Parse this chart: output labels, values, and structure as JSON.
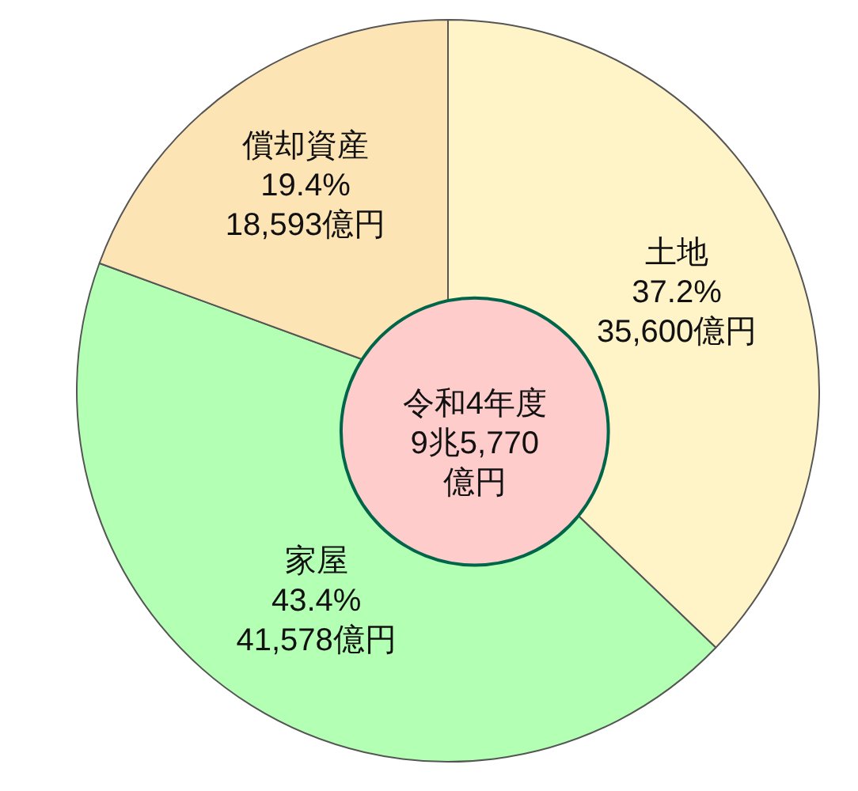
{
  "chart_data": {
    "type": "donut",
    "categories": [
      "土地",
      "家屋",
      "償却資産"
    ],
    "values": [
      35600,
      41578,
      18593
    ],
    "colors": [
      "#fff3c8",
      "#b3ffb3",
      "#fde4b4"
    ],
    "value_labels": [
      "37.2%\n35,600億円",
      "43.4%\n41,578億円",
      "19.4%\n18,593億円"
    ],
    "annotations": [
      "令和4年度\n9兆5,770\n億円"
    ]
  }
}
